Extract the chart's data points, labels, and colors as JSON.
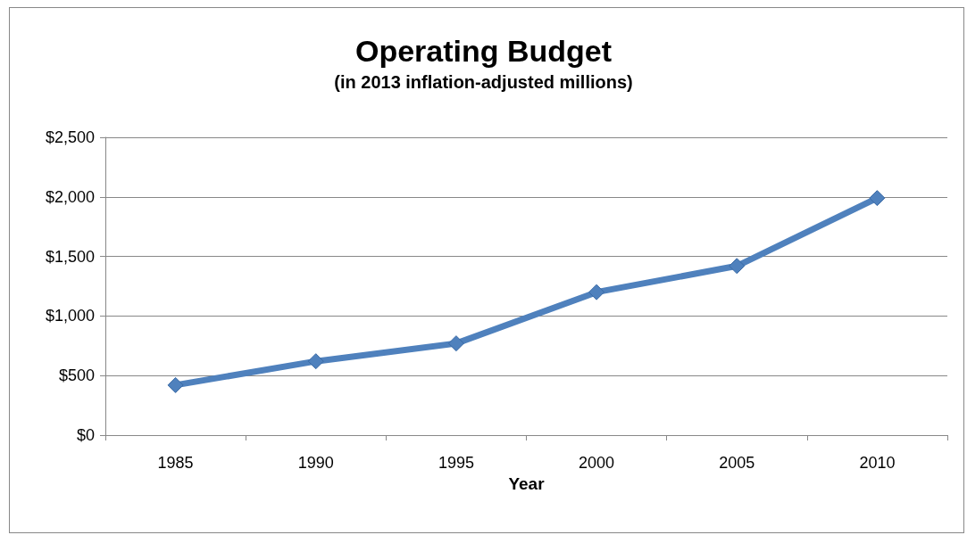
{
  "chart_data": {
    "type": "line",
    "title": "Operating Budget",
    "subtitle": "(in 2013 inflation-adjusted millions)",
    "xlabel": "Year",
    "categories": [
      "1985",
      "1990",
      "1995",
      "2000",
      "2005",
      "2010"
    ],
    "series": [
      {
        "color": "#4f81bd",
        "values": [
          420,
          620,
          770,
          1200,
          1420,
          1990
        ]
      }
    ],
    "ylim": [
      0,
      2500
    ],
    "yticks": [
      {
        "value": 0,
        "label": "$0"
      },
      {
        "value": 500,
        "label": "$500"
      },
      {
        "value": 1000,
        "label": "$1,000"
      },
      {
        "value": 1500,
        "label": "$1,500"
      },
      {
        "value": 2000,
        "label": "$2,000"
      },
      {
        "value": 2500,
        "label": "$2,500"
      }
    ],
    "grid": "y",
    "marker": "diamond",
    "line_style": "solid"
  }
}
